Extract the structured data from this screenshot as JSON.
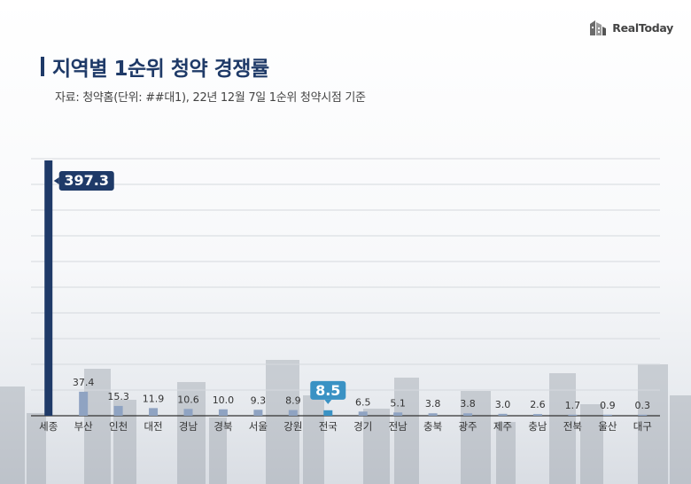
{
  "brand": {
    "name": "RealToday"
  },
  "header": {
    "title": "지역별 1순위 청약 경쟁률",
    "subtitle": "자료: 청약홈(단위: ##대1), 22년 12월 7일 1순위 청약시점 기준"
  },
  "colors": {
    "primary": "#1f3a68",
    "bar": "#8fa3c2",
    "highlight": "#3a92c4",
    "grid": "#d5d9de"
  },
  "chart_data": {
    "type": "bar",
    "title": "지역별 1순위 청약 경쟁률",
    "categories": [
      "세종",
      "부산",
      "인천",
      "대전",
      "경남",
      "경북",
      "서울",
      "강원",
      "전국",
      "경기",
      "전남",
      "충북",
      "광주",
      "제주",
      "충남",
      "전북",
      "울산",
      "대구"
    ],
    "values": [
      397.3,
      37.4,
      15.3,
      11.9,
      10.6,
      10.0,
      9.3,
      8.9,
      8.5,
      6.5,
      5.1,
      3.8,
      3.8,
      3.0,
      2.6,
      1.7,
      0.9,
      0.3
    ],
    "labels": [
      "397.3",
      "37.4",
      "15.3",
      "11.9",
      "10.6",
      "10.0",
      "9.3",
      "8.9",
      "8.5",
      "6.5",
      "5.1",
      "3.8",
      "3.8",
      "3.0",
      "2.6",
      "1.7",
      "0.9",
      "0.3"
    ],
    "highlight": {
      "max": "세종",
      "national": "전국"
    },
    "ylim": [
      0,
      400
    ],
    "grid": true,
    "xlabel": "",
    "ylabel": ""
  }
}
